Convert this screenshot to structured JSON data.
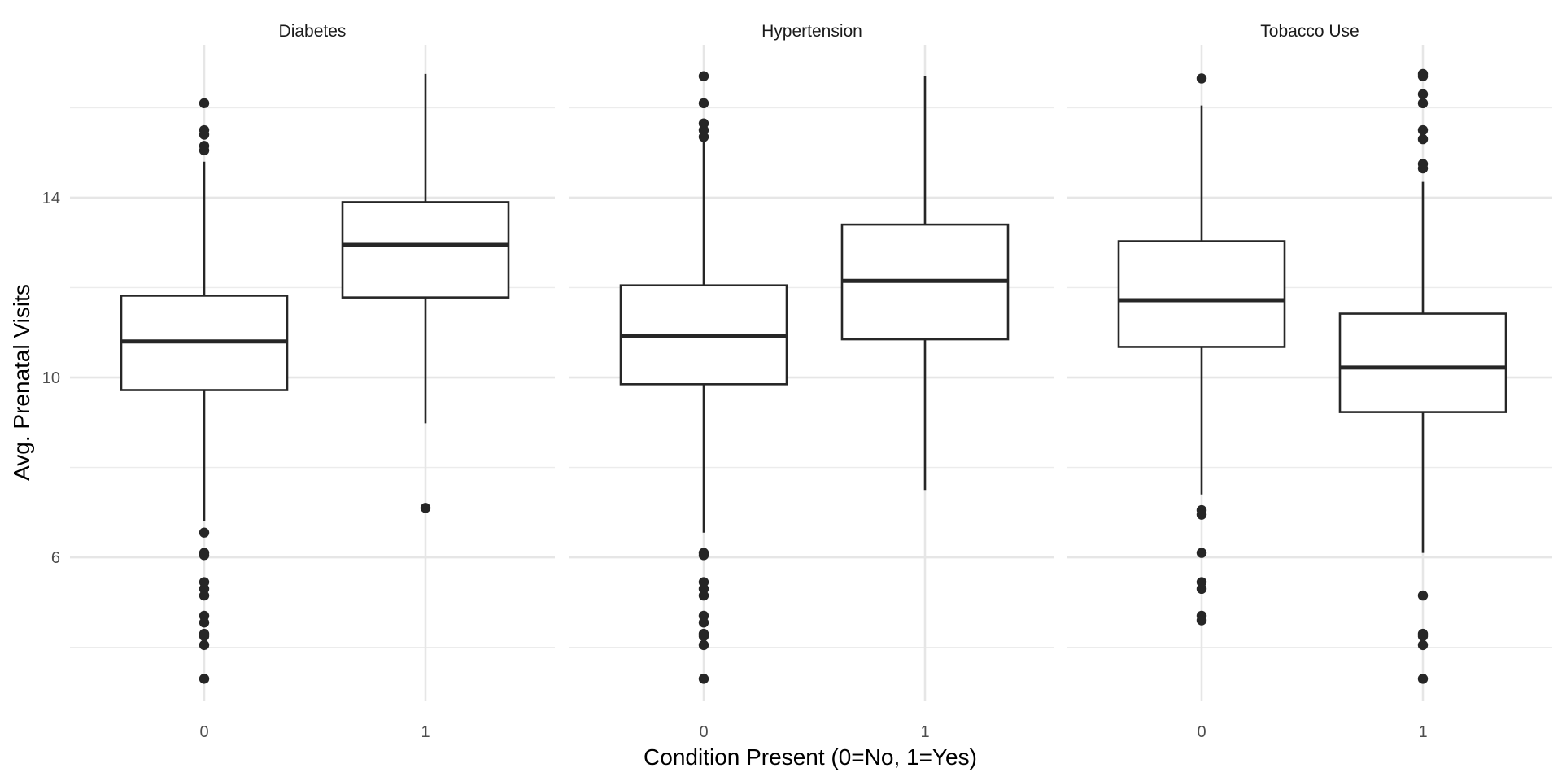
{
  "chart_data": {
    "type": "boxplot",
    "xlabel": "Condition Present (0=No, 1=Yes)",
    "ylabel": "Avg. Prenatal Visits",
    "y_ticks": [
      6,
      10,
      14
    ],
    "ylim": [
      2.8,
      17.4
    ],
    "grid": true,
    "categories": [
      "0",
      "1"
    ],
    "facets": [
      {
        "title": "Diabetes",
        "groups": [
          {
            "x": "0",
            "q1": 9.72,
            "median": 10.8,
            "q3": 11.82,
            "whisker_low": 6.8,
            "whisker_high": 14.8,
            "outliers": [
              16.1,
              15.5,
              15.4,
              15.15,
              15.05,
              6.55,
              6.1,
              6.05,
              5.45,
              5.3,
              5.15,
              4.7,
              4.55,
              4.3,
              4.25,
              4.05,
              3.3
            ]
          },
          {
            "x": "1",
            "q1": 11.78,
            "median": 12.95,
            "q3": 13.9,
            "whisker_low": 8.98,
            "whisker_high": 16.75,
            "outliers": [
              7.1
            ]
          }
        ]
      },
      {
        "title": "Hypertension",
        "groups": [
          {
            "x": "0",
            "q1": 9.85,
            "median": 10.92,
            "q3": 12.05,
            "whisker_low": 6.55,
            "whisker_high": 15.3,
            "outliers": [
              16.7,
              16.1,
              15.65,
              15.5,
              15.35,
              6.1,
              6.05,
              5.45,
              5.3,
              5.15,
              4.7,
              4.55,
              4.3,
              4.25,
              4.05,
              3.3
            ]
          },
          {
            "x": "1",
            "q1": 10.85,
            "median": 12.15,
            "q3": 13.4,
            "whisker_low": 7.5,
            "whisker_high": 16.7,
            "outliers": []
          }
        ]
      },
      {
        "title": "Tobacco Use",
        "groups": [
          {
            "x": "0",
            "q1": 10.68,
            "median": 11.72,
            "q3": 13.03,
            "whisker_low": 7.4,
            "whisker_high": 16.05,
            "outliers": [
              16.65,
              7.05,
              6.95,
              6.1,
              5.45,
              5.3,
              4.7,
              4.6
            ]
          },
          {
            "x": "1",
            "q1": 9.23,
            "median": 10.22,
            "q3": 11.42,
            "whisker_low": 6.1,
            "whisker_high": 14.35,
            "outliers": [
              16.75,
              16.7,
              16.3,
              16.1,
              15.5,
              15.3,
              14.75,
              14.65,
              5.15,
              4.3,
              4.25,
              4.05,
              3.3
            ]
          }
        ]
      }
    ]
  }
}
